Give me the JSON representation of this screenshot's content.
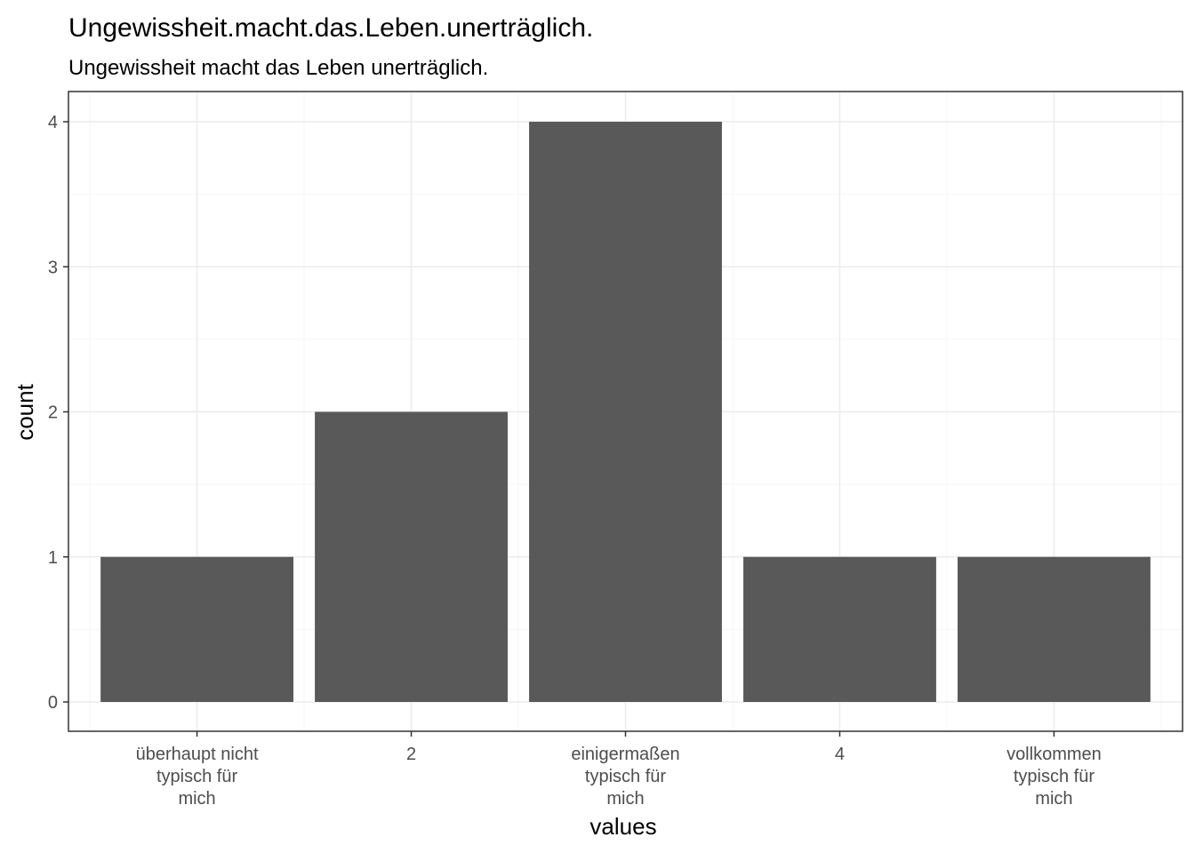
{
  "chart_data": {
    "type": "bar",
    "title": "Ungewissheit.macht.das.Leben.unerträglich.",
    "subtitle": "Ungewissheit macht das Leben unerträglich.",
    "xlabel": "values",
    "ylabel": "count",
    "categories": [
      [
        "überhaupt nicht",
        "typisch für",
        "mich"
      ],
      [
        "2"
      ],
      [
        "einigermaßen",
        "typisch für",
        "mich"
      ],
      [
        "4"
      ],
      [
        "vollkommen",
        "typisch für",
        "mich"
      ]
    ],
    "values": [
      1,
      2,
      4,
      1,
      1
    ],
    "ylim": [
      0,
      4
    ],
    "yticks": [
      0,
      1,
      2,
      3,
      4
    ],
    "grid": true,
    "colors": {
      "bar": "#595959",
      "grid_major": "#ebebeb",
      "grid_minor": "#f5f5f5",
      "panel_border": "#333333"
    }
  }
}
